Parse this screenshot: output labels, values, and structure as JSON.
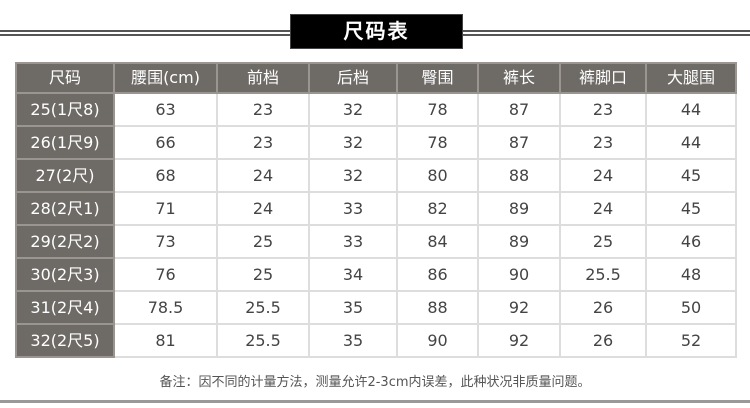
{
  "title": "尺码表",
  "table": {
    "headers": [
      "尺码",
      "腰围(cm)",
      "前档",
      "后档",
      "臀围",
      "裤长",
      "裤脚口",
      "大腿围"
    ],
    "rows": [
      [
        "25(1尺8)",
        "63",
        "23",
        "32",
        "78",
        "87",
        "23",
        "44"
      ],
      [
        "26(1尺9)",
        "66",
        "23",
        "32",
        "78",
        "87",
        "23",
        "44"
      ],
      [
        "27(2尺)",
        "68",
        "24",
        "32",
        "80",
        "88",
        "24",
        "45"
      ],
      [
        "28(2尺1)",
        "71",
        "24",
        "33",
        "82",
        "89",
        "24",
        "45"
      ],
      [
        "29(2尺2)",
        "73",
        "25",
        "33",
        "84",
        "89",
        "25",
        "46"
      ],
      [
        "30(2尺3)",
        "76",
        "25",
        "34",
        "86",
        "90",
        "25.5",
        "48"
      ],
      [
        "31(2尺4)",
        "78.5",
        "25.5",
        "35",
        "88",
        "92",
        "26",
        "50"
      ],
      [
        "32(2尺5)",
        "81",
        "25.5",
        "35",
        "90",
        "92",
        "26",
        "52"
      ]
    ]
  },
  "note": "备注：因不同的计量方法，测量允许2-3cm内误差，此种状况非质量问题。",
  "colors": {
    "header_bg": "#6e6a66",
    "title_bg": "#000000",
    "text": "#444444"
  }
}
